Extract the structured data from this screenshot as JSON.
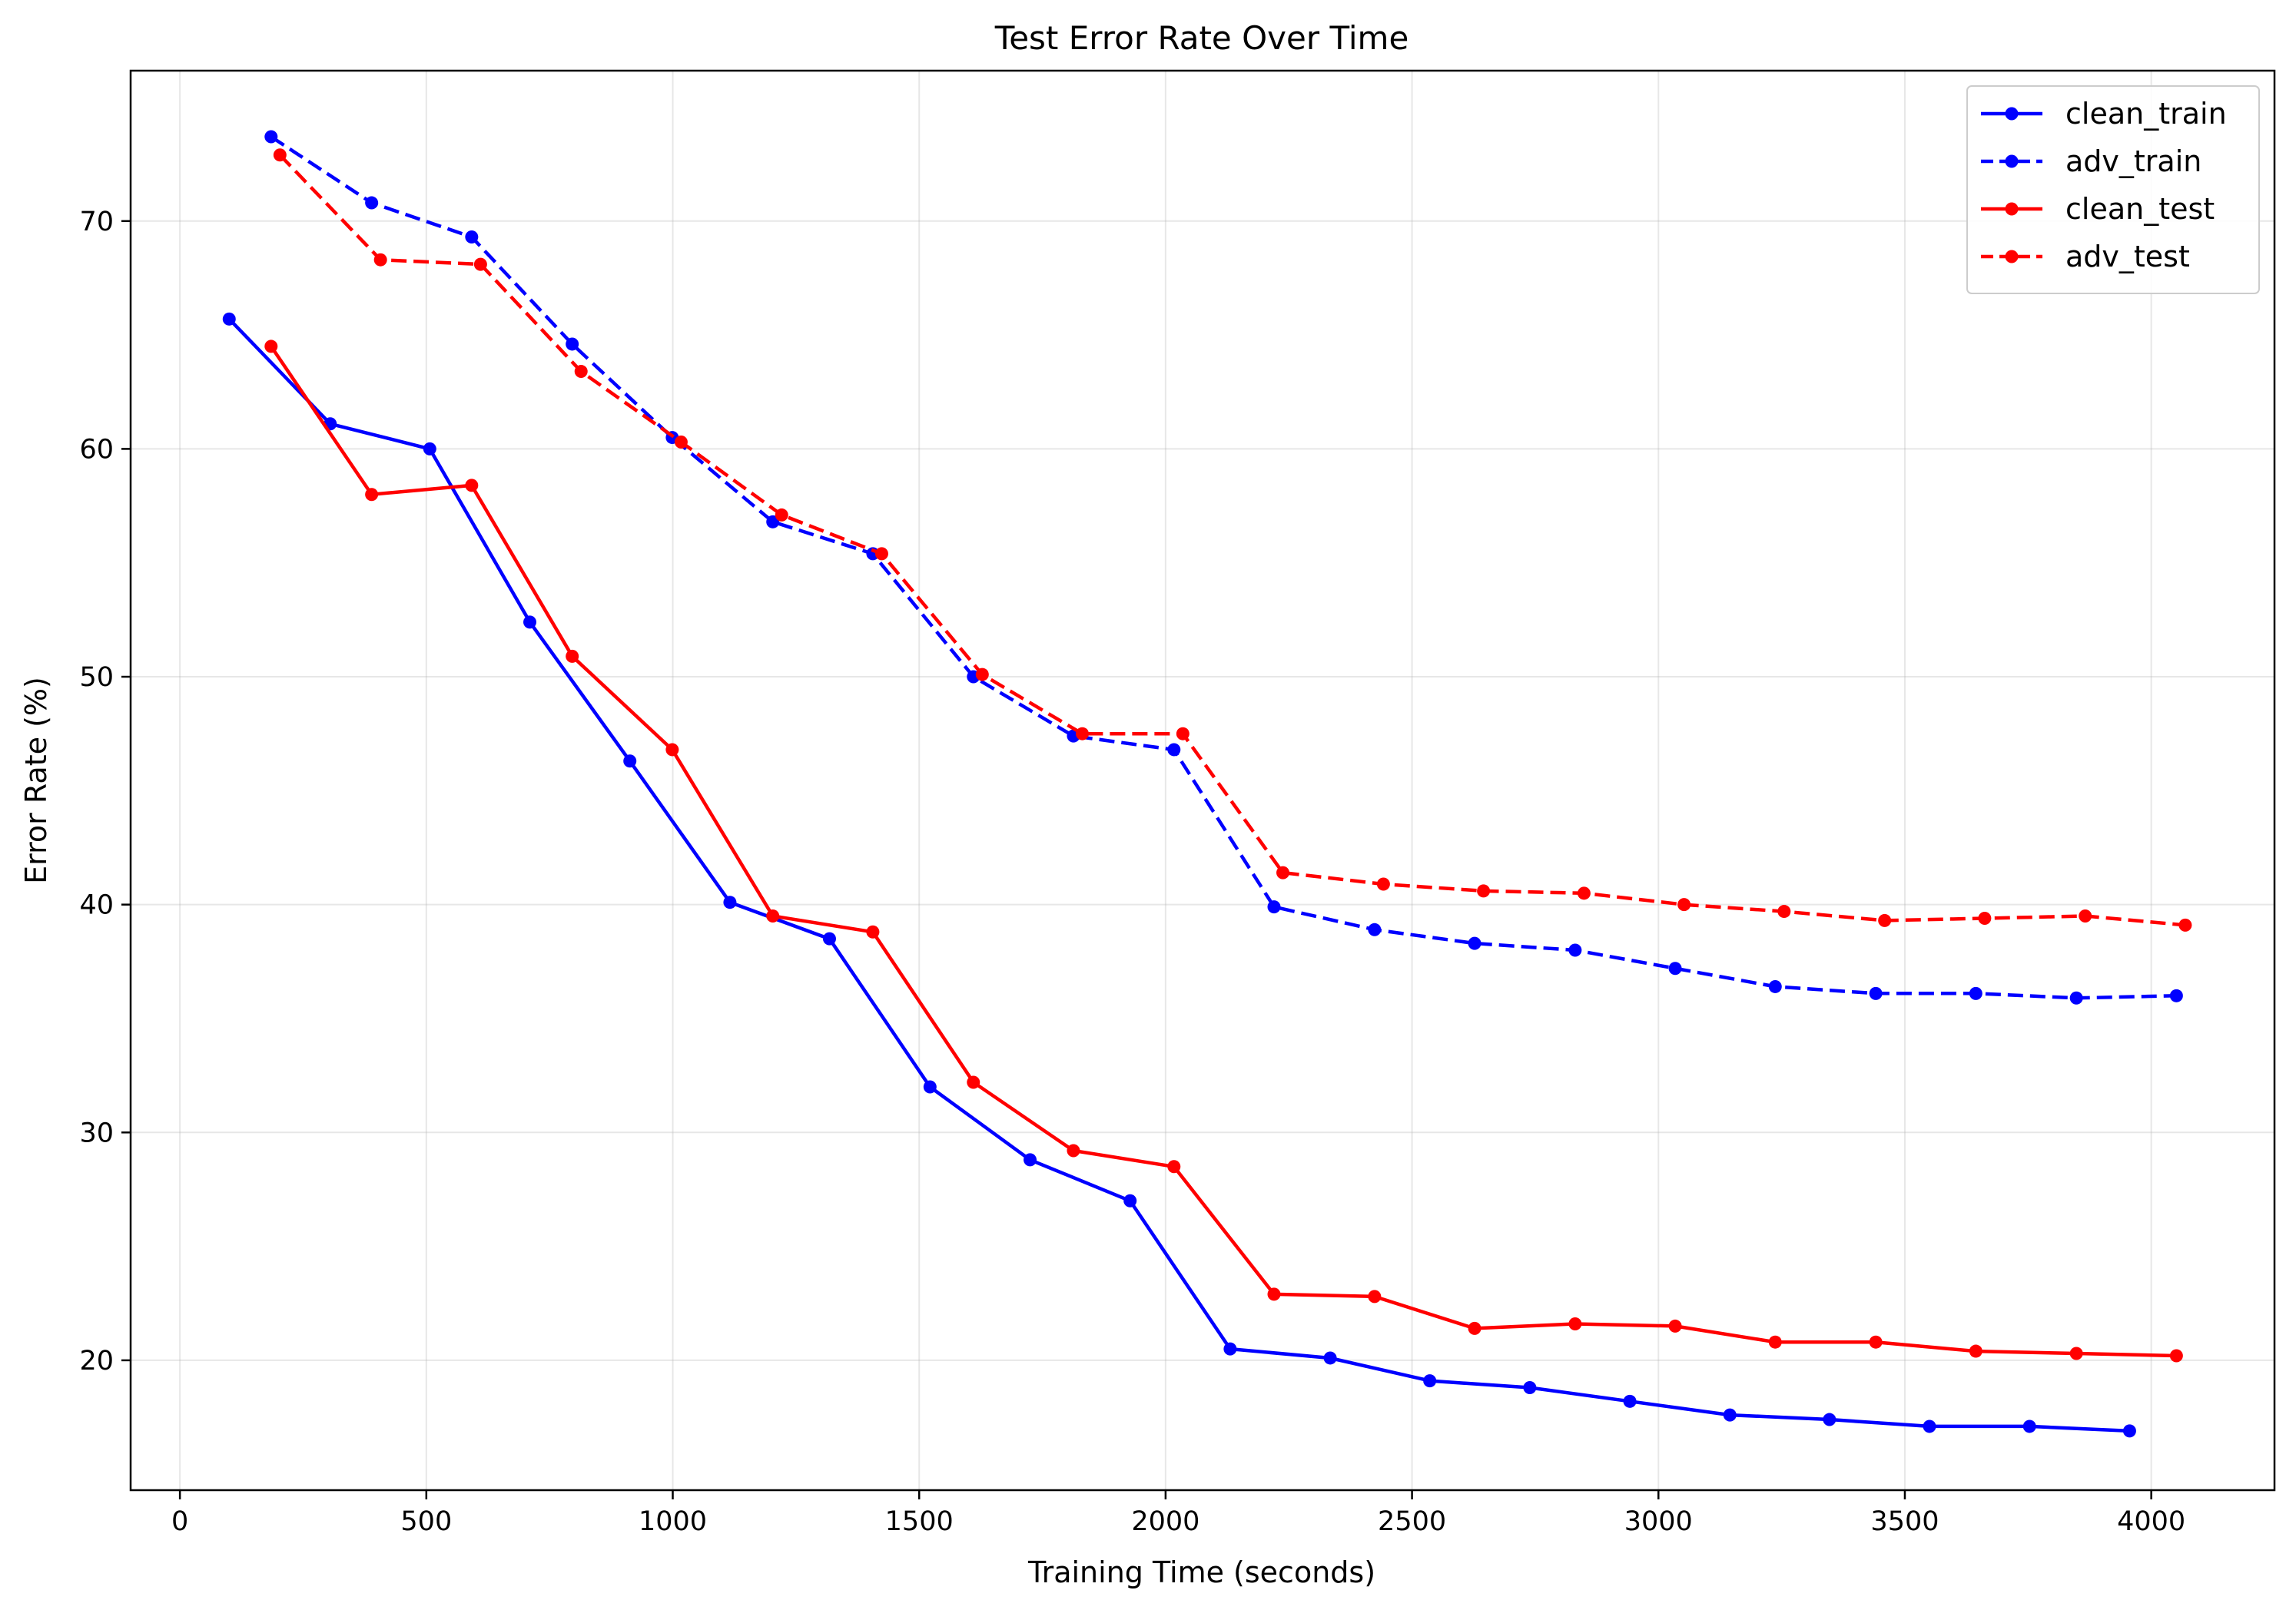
{
  "chart_data": {
    "type": "line",
    "title": "Test Error Rate Over Time",
    "xlabel": "Training Time (seconds)",
    "ylabel": "Error Rate (%)",
    "xlim": [
      -100,
      4250
    ],
    "ylim": [
      14.3,
      76.6
    ],
    "xticks": [
      0,
      500,
      1000,
      1500,
      2000,
      2500,
      3000,
      3500,
      4000
    ],
    "xtick_labels": [
      "0",
      "500",
      "1000",
      "1500",
      "2000",
      "2500",
      "3000",
      "3500",
      "4000"
    ],
    "yticks": [
      20,
      30,
      40,
      50,
      60,
      70
    ],
    "ytick_labels": [
      "20",
      "30",
      "40",
      "50",
      "60",
      "70"
    ],
    "grid": true,
    "legend_position": "top-right",
    "series": [
      {
        "name": "clean_train",
        "color": "#0000ff",
        "linestyle": "solid",
        "marker": "circle",
        "x": [
          100,
          305,
          507,
          710,
          913,
          1116,
          1318,
          1522,
          1725,
          1928,
          2131,
          2334,
          2536,
          2739,
          2942,
          3145,
          3347,
          3550,
          3753,
          3956
        ],
        "y": [
          65.7,
          61.1,
          60.0,
          52.4,
          46.3,
          40.1,
          38.5,
          32.0,
          28.8,
          27.0,
          20.5,
          20.1,
          19.1,
          18.8,
          18.2,
          17.6,
          17.4,
          17.1,
          17.1,
          16.9
        ]
      },
      {
        "name": "adv_train",
        "color": "#0000ff",
        "linestyle": "dashed",
        "marker": "circle",
        "x": [
          185,
          389,
          592,
          796,
          999,
          1203,
          1406,
          1610,
          1813,
          2017,
          2220,
          2424,
          2627,
          2831,
          3034,
          3237,
          3441,
          3644,
          3848,
          4051
        ],
        "y": [
          73.7,
          70.8,
          69.3,
          64.6,
          60.5,
          56.8,
          55.4,
          50.0,
          47.4,
          46.8,
          39.9,
          38.9,
          38.3,
          38.0,
          37.2,
          36.4,
          36.1,
          36.1,
          35.9,
          36.0
        ]
      },
      {
        "name": "clean_test",
        "color": "#ff0000",
        "linestyle": "solid",
        "marker": "circle",
        "x": [
          185,
          389,
          592,
          796,
          999,
          1203,
          1406,
          1610,
          1813,
          2017,
          2220,
          2424,
          2627,
          2831,
          3034,
          3237,
          3441,
          3644,
          3848,
          4051
        ],
        "y": [
          64.5,
          58.0,
          58.4,
          50.9,
          46.8,
          39.5,
          38.8,
          32.2,
          29.2,
          28.5,
          22.9,
          22.8,
          21.4,
          21.6,
          21.5,
          20.8,
          20.8,
          20.4,
          20.3,
          20.2
        ]
      },
      {
        "name": "adv_test",
        "color": "#ff0000",
        "linestyle": "dashed",
        "marker": "circle",
        "x": [
          203,
          407,
          610,
          814,
          1017,
          1221,
          1424,
          1628,
          1831,
          2035,
          2238,
          2442,
          2645,
          2849,
          3052,
          3255,
          3459,
          3662,
          3866,
          4069
        ],
        "y": [
          72.9,
          68.3,
          68.1,
          63.4,
          60.3,
          57.1,
          55.4,
          50.1,
          47.5,
          47.5,
          41.4,
          40.9,
          40.6,
          40.5,
          40.0,
          39.7,
          39.3,
          39.4,
          39.5,
          39.1
        ]
      }
    ]
  }
}
